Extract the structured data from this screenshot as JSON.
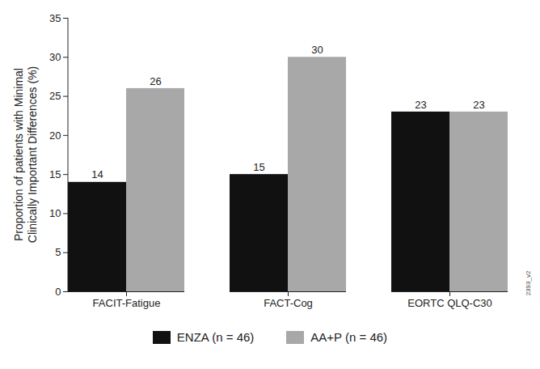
{
  "chart_data": {
    "type": "bar",
    "y_label": "Proportion of patients with Minimal Clinically Important Differences (%)",
    "categories": [
      "FACIT-Fatigue",
      "FACT-Cog",
      "EORTC QLQ-C30"
    ],
    "series": [
      {
        "name": "ENZA (n = 46)",
        "color": "#111111",
        "values": [
          14,
          15,
          23
        ]
      },
      {
        "name": "AA+P (n = 46)",
        "color": "#a8a8a8",
        "values": [
          26,
          30,
          23
        ]
      }
    ],
    "ylim": [
      0,
      35
    ],
    "yticks": [
      0,
      5,
      10,
      15,
      20,
      25,
      30,
      35
    ],
    "data_labels": true,
    "legend": "bottom",
    "grid": false,
    "annotations": [
      "2393_v2"
    ]
  }
}
